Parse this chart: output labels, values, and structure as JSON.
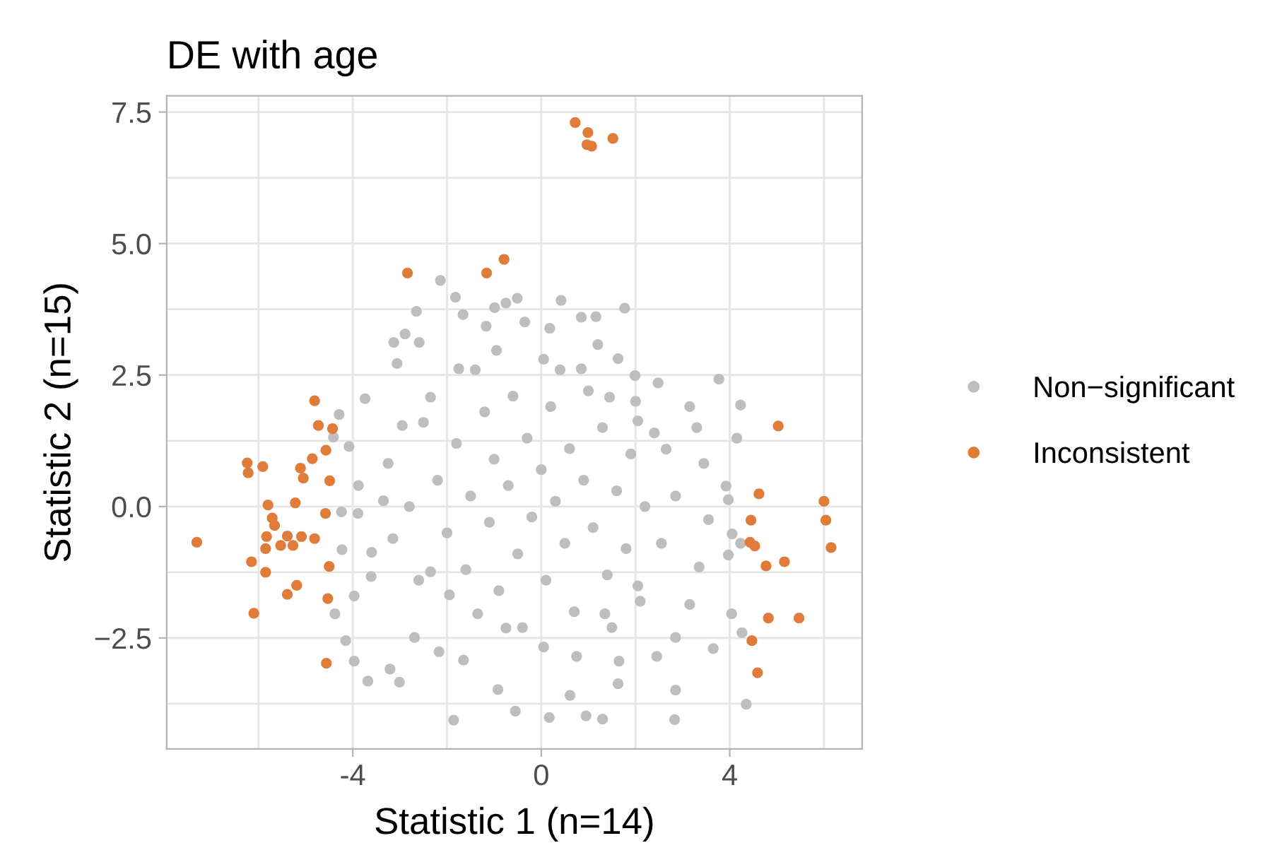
{
  "chart_data": {
    "type": "scatter",
    "title": "DE with age",
    "xlabel": "Statistic 1 (n=14)",
    "ylabel": "Statistic 2 (n=15)",
    "xlim": [
      -7.95,
      6.81
    ],
    "ylim": [
      -4.61,
      7.81
    ],
    "xticks": [
      {
        "value": -6,
        "label": null
      },
      -4,
      {
        "value": -2,
        "label": null
      },
      0,
      {
        "value": 2,
        "label": null
      },
      4,
      {
        "value": 6,
        "label": null
      }
    ],
    "yticks": [
      {
        "value": -3.75,
        "label": null
      },
      {
        "value": -2.5,
        "label": "−2.5"
      },
      {
        "value": -1.25,
        "label": null
      },
      {
        "value": 0,
        "label": "0.0"
      },
      {
        "value": 1.25,
        "label": null
      },
      2.5,
      {
        "value": 3.75,
        "label": null
      },
      {
        "value": 5,
        "label": "5.0"
      },
      {
        "value": 6.25,
        "label": null
      },
      7.5
    ],
    "grid": true,
    "legend": "right",
    "marker": "circle",
    "series": [
      {
        "name": "Non−significant",
        "color": "#bebebe",
        "x": [
          -2.14,
          -1.82,
          -1.66,
          -2.65,
          -3.13,
          -2.89,
          -2.59,
          -3.06,
          -3.74,
          -4.29,
          -4.41,
          -4.08,
          -3.88,
          -4.24,
          -3.89,
          -4.23,
          -3.6,
          -3.61,
          -3.97,
          -4.38,
          -4.15,
          -3.97,
          -3.68,
          -3.21,
          -3.01,
          -2.69,
          -2.17,
          -1.65,
          -1.86,
          -0.92,
          -0.55,
          0.17,
          0.61,
          0.95,
          1.3,
          1.63,
          2.83,
          2.85,
          4.35,
          4.26,
          3.65,
          4.04,
          3.97,
          4.23,
          4.05,
          3.97,
          3.92,
          4.15,
          4.23,
          3.77,
          2.48,
          1.99,
          1.77,
          1.2,
          0.85,
          0.42,
          -0.51,
          -0.75,
          -0.99,
          -1.17,
          -0.35,
          0.18,
          1.16,
          1.63,
          3.15,
          3.3,
          3.45,
          3.55,
          3.35,
          3.15,
          2.85,
          2.45,
          1.65,
          0.75,
          0.05,
          -0.75,
          -1.35,
          -1.95,
          -2.35,
          -3.15,
          -3.35,
          -3.25,
          -2.95,
          -2.35,
          -1.75,
          -0.95,
          0.05,
          0.85,
          1.45,
          2.05,
          2.65,
          2.85,
          2.55,
          2.05,
          1.35,
          -2.2,
          -2.0,
          -1.8,
          -1.6,
          -1.5,
          -1.2,
          -1.1,
          -1.0,
          -0.9,
          -0.7,
          -0.6,
          -0.5,
          -0.3,
          -0.2,
          0.0,
          0.1,
          0.2,
          0.3,
          0.5,
          0.6,
          0.7,
          0.9,
          1.0,
          1.1,
          1.3,
          1.4,
          1.6,
          1.8,
          1.9,
          2.1,
          2.2,
          2.4,
          -2.5,
          -2.6,
          -0.4,
          0.4,
          1.5,
          2.0,
          -1.4,
          -2.8
        ],
        "values": [
          4.3,
          3.98,
          3.65,
          3.71,
          3.12,
          3.28,
          3.12,
          2.72,
          2.05,
          1.75,
          1.32,
          1.14,
          0.4,
          -0.1,
          -0.13,
          -0.82,
          -0.87,
          -1.33,
          -1.7,
          -2.04,
          -2.55,
          -2.94,
          -3.32,
          -3.09,
          -3.34,
          -2.49,
          -2.76,
          -2.92,
          -4.06,
          -3.48,
          -3.89,
          -4.01,
          -3.59,
          -3.98,
          -4.04,
          -3.37,
          -4.05,
          -3.49,
          -3.76,
          -2.4,
          -2.7,
          -2.04,
          -0.92,
          -0.7,
          -0.52,
          0.13,
          0.39,
          1.3,
          1.93,
          2.42,
          2.35,
          2.49,
          3.77,
          3.08,
          3.6,
          3.92,
          3.96,
          3.87,
          3.78,
          3.43,
          3.51,
          3.39,
          3.61,
          2.81,
          1.9,
          1.5,
          0.82,
          -0.25,
          -1.15,
          -1.86,
          -2.49,
          -2.85,
          -2.94,
          -2.85,
          -2.67,
          -2.31,
          -2.04,
          -1.68,
          -1.24,
          -0.61,
          0.11,
          0.82,
          1.54,
          2.08,
          2.62,
          2.97,
          2.8,
          2.62,
          2.08,
          1.63,
          1.09,
          0.2,
          -0.7,
          -1.51,
          -2.04,
          0.5,
          -0.5,
          1.2,
          -1.2,
          0.2,
          1.8,
          -0.3,
          0.9,
          -1.6,
          0.4,
          2.1,
          -0.9,
          1.3,
          -0.2,
          0.7,
          -1.4,
          1.9,
          0.1,
          -0.7,
          1.1,
          -2.0,
          0.5,
          2.2,
          -0.4,
          1.5,
          -1.3,
          0.3,
          -0.8,
          1.0,
          -1.8,
          0.0,
          1.4,
          1.6,
          -1.4,
          -2.3,
          2.6,
          -2.3,
          2.0,
          2.6,
          0.0
        ]
      },
      {
        "name": "Inconsistent",
        "color": "#e07b39",
        "x": [
          0.72,
          0.99,
          0.97,
          1.07,
          1.52,
          -2.84,
          -1.16,
          -0.79,
          -4.81,
          -4.73,
          -4.43,
          -4.57,
          -4.86,
          -6.24,
          -6.22,
          -5.91,
          -5.11,
          -5.05,
          -4.49,
          -5.8,
          -5.22,
          -4.58,
          -5.71,
          -5.66,
          -7.31,
          -5.83,
          -5.39,
          -5.09,
          -4.81,
          -5.85,
          -5.53,
          -5.27,
          -6.15,
          -5.85,
          -4.5,
          -5.19,
          -5.39,
          -4.53,
          -6.1,
          -4.56,
          5.03,
          4.62,
          6.0,
          6.04,
          4.45,
          4.43,
          4.53,
          6.15,
          4.77,
          5.16,
          4.82,
          5.47,
          4.47,
          4.59
        ],
        "values": [
          7.3,
          7.11,
          6.88,
          6.85,
          7.0,
          4.44,
          4.44,
          4.7,
          2.01,
          1.54,
          1.48,
          1.07,
          0.91,
          0.83,
          0.64,
          0.76,
          0.73,
          0.54,
          0.49,
          0.03,
          0.07,
          -0.13,
          -0.22,
          -0.36,
          -0.68,
          -0.57,
          -0.56,
          -0.57,
          -0.61,
          -0.8,
          -0.74,
          -0.74,
          -1.05,
          -1.25,
          -1.14,
          -1.5,
          -1.67,
          -1.75,
          -2.03,
          -2.98,
          1.53,
          0.24,
          0.1,
          -0.26,
          -0.26,
          -0.68,
          -0.75,
          -0.78,
          -1.13,
          -1.05,
          -2.12,
          -2.12,
          -2.55,
          -3.16
        ]
      }
    ]
  }
}
